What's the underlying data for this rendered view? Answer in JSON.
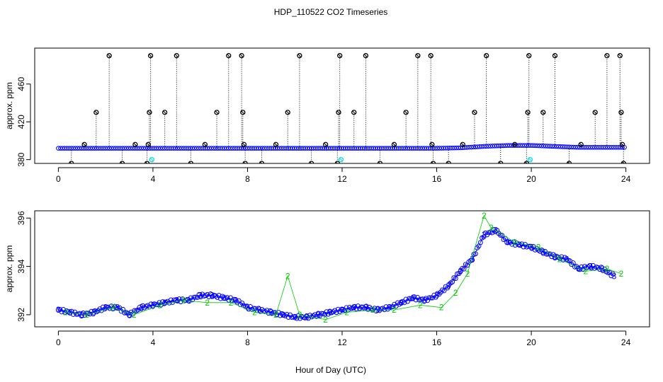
{
  "figure": {
    "title": "HDP_110522  CO2 Timeseries",
    "xlabel": "Hour of Day (UTC)"
  },
  "colors": {
    "series_3": "#0000ff",
    "series_2": "#00cc00",
    "flagged": "#00dddd",
    "outlier": "#000000",
    "axes": "#000000"
  },
  "chart_data": [
    {
      "type": "scatter",
      "panel": "top",
      "ylabel": "approx. ppm",
      "xlim": [
        -1,
        25
      ],
      "ylim": [
        376,
        498
      ],
      "x_ticks": [
        0,
        4,
        8,
        12,
        16,
        20,
        24
      ],
      "y_ticks": [
        380,
        420,
        460
      ],
      "grid": false,
      "baseline_series": {
        "x": [
          0,
          1,
          2,
          3,
          4,
          5,
          6,
          7,
          8,
          9,
          10,
          11,
          12,
          13,
          14,
          15,
          16,
          17,
          18,
          19,
          20,
          21,
          22,
          23,
          24
        ],
        "ppm": [
          392,
          392,
          392,
          392,
          392,
          392,
          392,
          392,
          392,
          392,
          392,
          392,
          392,
          392,
          392,
          392,
          392,
          392.5,
          394,
          395,
          395,
          394,
          393,
          393,
          393
        ]
      },
      "outliers": {
        "x": [
          0.55,
          1.1,
          1.6,
          2.15,
          2.7,
          3.25,
          3.75,
          3.8,
          3.85,
          3.9,
          4.5,
          5.0,
          5.6,
          6.2,
          6.7,
          7.2,
          7.75,
          7.8,
          7.85,
          7.9,
          8.6,
          9.2,
          9.7,
          10.2,
          10.7,
          11.3,
          11.8,
          11.85,
          11.9,
          12.5,
          13.0,
          13.6,
          14.2,
          14.7,
          15.2,
          15.75,
          15.8,
          15.85,
          16.5,
          17.1,
          17.6,
          18.1,
          18.7,
          19.3,
          19.8,
          19.85,
          19.9,
          20.5,
          21.0,
          21.6,
          22.1,
          22.7,
          23.2,
          23.75,
          23.8,
          23.85,
          23.9
        ],
        "ppm": [
          376,
          396,
          430,
          490,
          376,
          396,
          376,
          396,
          430,
          490,
          430,
          490,
          376,
          396,
          430,
          490,
          490,
          430,
          396,
          376,
          376,
          396,
          430,
          490,
          376,
          396,
          376,
          430,
          490,
          430,
          490,
          376,
          396,
          430,
          490,
          490,
          396,
          376,
          376,
          396,
          430,
          490,
          376,
          396,
          376,
          430,
          490,
          430,
          490,
          376,
          396,
          430,
          490,
          490,
          430,
          396,
          376
        ]
      },
      "flagged_points": {
        "x": [
          3.95,
          11.95,
          19.95
        ],
        "ppm": [
          380,
          380,
          380
        ]
      }
    },
    {
      "type": "scatter",
      "panel": "bottom",
      "ylabel": "approx. ppm",
      "xlim": [
        -1,
        25
      ],
      "ylim": [
        391.5,
        396.3
      ],
      "x_ticks": [
        0,
        4,
        8,
        12,
        16,
        20,
        24
      ],
      "y_ticks": [
        392,
        394,
        396
      ],
      "grid": false,
      "series": [
        {
          "name": "3",
          "x": [
            0,
            0.5,
            1,
            1.5,
            2,
            2.5,
            3,
            3.5,
            4,
            4.5,
            5,
            5.5,
            6,
            6.5,
            7,
            7.5,
            8,
            8.5,
            9,
            9.5,
            10,
            10.5,
            11,
            11.5,
            12,
            12.5,
            13,
            13.5,
            14,
            14.5,
            15,
            15.5,
            16,
            16.5,
            17,
            17.5,
            18,
            18.5,
            19,
            19.5,
            20,
            20.5,
            21,
            21.5,
            22,
            22.5,
            23,
            23.5
          ],
          "ppm": [
            392.2,
            392.1,
            392.0,
            392.1,
            392.3,
            392.3,
            392.0,
            392.3,
            392.4,
            392.5,
            392.6,
            392.6,
            392.8,
            392.8,
            392.7,
            392.6,
            392.3,
            392.2,
            392.1,
            392.0,
            391.9,
            391.9,
            392.0,
            392.1,
            392.2,
            392.3,
            392.3,
            392.2,
            392.3,
            392.5,
            392.7,
            392.6,
            392.8,
            393.2,
            393.8,
            394.3,
            395.3,
            395.5,
            395.0,
            394.9,
            394.8,
            394.6,
            394.4,
            394.3,
            393.9,
            394.0,
            393.9,
            393.6
          ]
        },
        {
          "name": "2",
          "x": [
            0.3,
            1.2,
            2.3,
            3.2,
            4.3,
            5.3,
            6.3,
            7.3,
            8.3,
            9.2,
            9.7,
            10.2,
            11.3,
            12.2,
            13.3,
            14.2,
            15.3,
            16.2,
            16.8,
            17.3,
            18.0,
            18.3,
            19.3,
            20.3,
            21.2,
            22.3,
            23.2,
            23.8
          ],
          "ppm": [
            392.1,
            392.0,
            392.3,
            392.0,
            392.4,
            392.6,
            392.5,
            392.5,
            392.1,
            392.0,
            393.6,
            392.0,
            391.8,
            392.1,
            392.2,
            392.2,
            392.4,
            392.3,
            392.9,
            393.7,
            396.1,
            395.6,
            395.0,
            394.8,
            394.3,
            393.8,
            393.9,
            393.7
          ]
        }
      ]
    }
  ]
}
